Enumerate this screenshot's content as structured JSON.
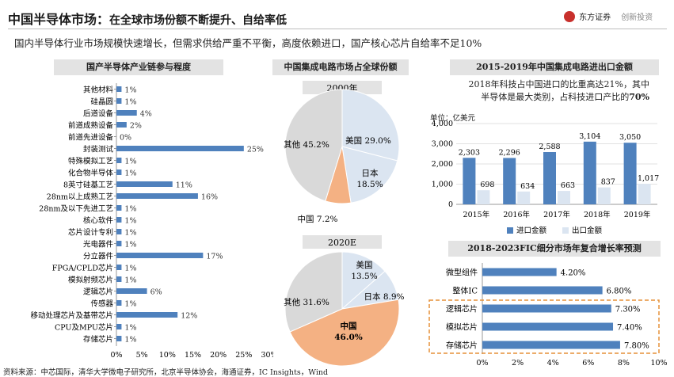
{
  "header": {
    "title": "中国半导体市场：",
    "title_sub": "在全球市场份额不断提升、自给率低",
    "subtitle": "国内半导体行业市场规模快速增长，但需求供给严重不平衡，高度依赖进口，国产核心芯片自给率不足10%",
    "logo_text_1": "东方证券",
    "logo_text_2": "创新投资"
  },
  "note_2018": {
    "line1": "2018年科技占中国进口的比重高达21%，其中",
    "line2": "半导体是最大类别，占科技进口产比的",
    "highlight": "70%"
  },
  "unit_label": "单位：亿美元",
  "source": "资料来源：中芯国际，清华大学微电子研究所，北京半导体协会，海通证券，IC Insights，Wind",
  "colors": {
    "bar_blue": "#4f81bd",
    "light_blue": "#dbe5f1",
    "pie_grey": "#d9d9d9",
    "pie_orange": "#f4b183",
    "highlight_border": "#e69138"
  },
  "chart_data": [
    {
      "type": "bar",
      "title": "国产半导体产业链参与程度",
      "orientation": "horizontal",
      "categories": [
        "其他材料",
        "硅晶圆",
        "后道设备",
        "前道成熟设备",
        "前道先进设备",
        "封装测试",
        "特殊模拟工艺",
        "化合物半导体",
        "8英寸硅基工艺",
        "28nm以上成熟工艺",
        "28nm及以下先进工艺",
        "核心软件",
        "芯片设计专利",
        "光电器件",
        "分立器件",
        "FPGA/CPLD芯片",
        "模拟射频芯片",
        "逻辑芯片",
        "传感器",
        "移动处理芯片及基带芯片",
        "CPU及MPU芯片",
        "存储芯片"
      ],
      "values": [
        1,
        1,
        4,
        2,
        0,
        25,
        1,
        1,
        11,
        16,
        1,
        1,
        1,
        1,
        17,
        1,
        1,
        6,
        1,
        12,
        1,
        1
      ],
      "labels": [
        "1%",
        "1%",
        "4%",
        "2%",
        "0%",
        "25%",
        "1%",
        "1%",
        "11%",
        "16%",
        "1%",
        "1%",
        "1%",
        "1%",
        "17%",
        "1%",
        "1%",
        "6%",
        "1%",
        "12%",
        "1%",
        "1%"
      ],
      "xticks": [
        "0%",
        "5%",
        "10%",
        "15%",
        "20%",
        "25%",
        "30%"
      ],
      "xlim": [
        0,
        30
      ]
    },
    {
      "type": "pie",
      "title": "中国集成电路市场占全球份额",
      "subtitle": "2000年",
      "slices": [
        {
          "name": "美国",
          "value": 29.0,
          "label": "美国 29.0%"
        },
        {
          "name": "日本",
          "value": 18.5,
          "label_line1": "日本",
          "label_line2": "18.5%"
        },
        {
          "name": "中国",
          "value": 7.2,
          "label": "中国 7.2%"
        },
        {
          "name": "其他",
          "value": 45.2,
          "label": "其他 45.2%"
        }
      ]
    },
    {
      "type": "pie",
      "subtitle": "2020E",
      "slices": [
        {
          "name": "美国",
          "value": 13.5,
          "label_line1": "美国",
          "label_line2": "13.5%"
        },
        {
          "name": "日本",
          "value": 8.9,
          "label": "日本 8.9%"
        },
        {
          "name": "中国",
          "value": 46.0,
          "label_line1": "中国",
          "label_line2": "46.0%"
        },
        {
          "name": "其他",
          "value": 31.6,
          "label": "其他 31.6%"
        }
      ]
    },
    {
      "type": "bar",
      "title": "2015-2019年中国集成电路进出口金额",
      "categories": [
        "2015年",
        "2016年",
        "2017年",
        "2018年",
        "2019年"
      ],
      "series": [
        {
          "name": "进口金额",
          "values": [
            2303,
            2296,
            2588,
            3104,
            3050
          ],
          "labels": [
            "2,303",
            "2,296",
            "2,588",
            "3,104",
            "3,050"
          ]
        },
        {
          "name": "出口金额",
          "values": [
            698,
            634,
            663,
            837,
            1017
          ],
          "labels": [
            "698",
            "634",
            "663",
            "837",
            "1,017"
          ]
        }
      ],
      "yticks": [
        "0",
        "1,000",
        "2,000",
        "3,000",
        "4,000"
      ],
      "ylim": [
        0,
        4000
      ]
    },
    {
      "type": "bar",
      "title": "2018-2023FIC细分市场年复合增长率预测",
      "orientation": "horizontal",
      "categories": [
        "微型组件",
        "整体IC",
        "逻辑芯片",
        "模拟芯片",
        "存储芯片"
      ],
      "values": [
        4.2,
        6.8,
        7.3,
        7.4,
        7.8
      ],
      "labels": [
        "4.20%",
        "6.80%",
        "7.30%",
        "7.40%",
        "7.80%"
      ],
      "xticks": [
        "0%",
        "2%",
        "4%",
        "6%",
        "8%",
        "10%"
      ],
      "xlim": [
        0,
        10
      ],
      "highlighted": [
        "逻辑芯片",
        "模拟芯片",
        "存储芯片"
      ]
    }
  ]
}
